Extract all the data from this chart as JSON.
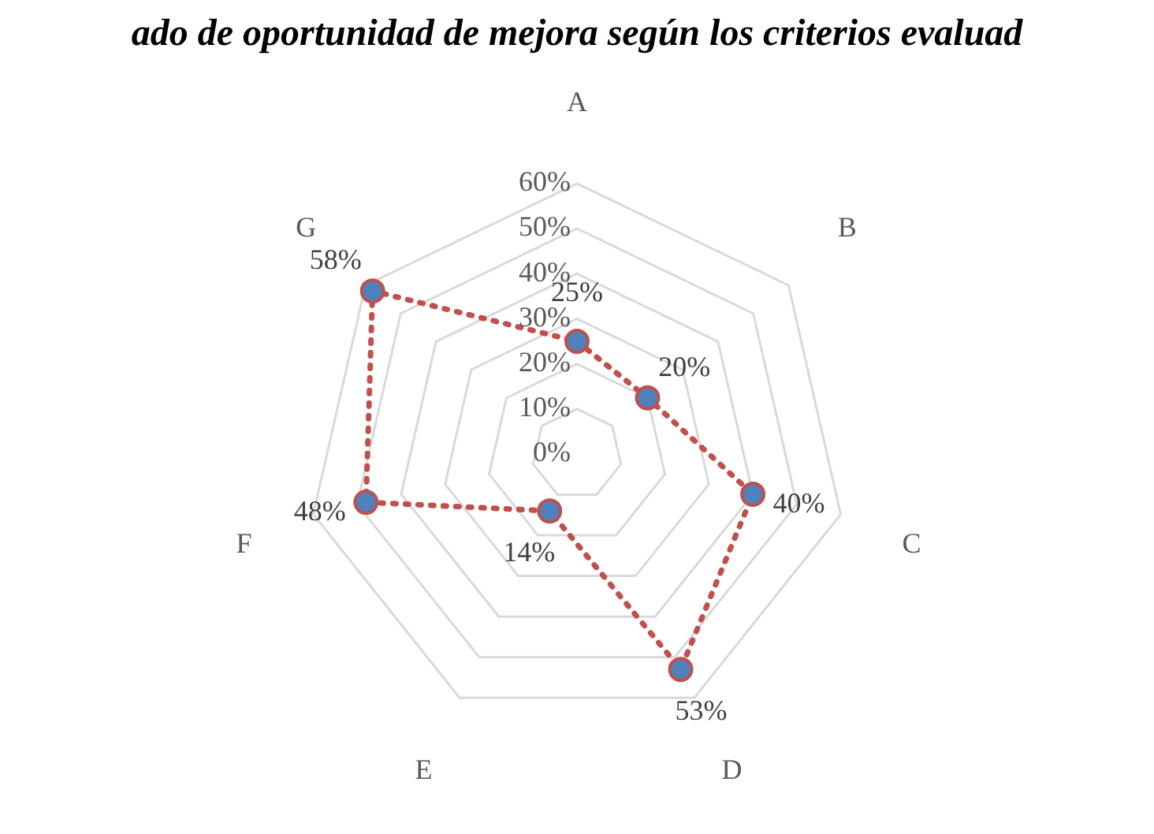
{
  "chart_data": {
    "type": "radar",
    "title": "ado de oportunidad de mejora según los criterios evaluad",
    "categories": [
      "A",
      "B",
      "C",
      "D",
      "E",
      "F",
      "G"
    ],
    "series": [
      {
        "color": "#c0504d",
        "values": [
          25,
          20,
          40,
          53,
          14,
          48,
          58
        ],
        "value_labels": [
          "25%",
          "20%",
          "40%",
          "53%",
          "14%",
          "48%",
          "58%"
        ]
      }
    ],
    "ylim": [
      0,
      60
    ],
    "yticks": [
      {
        "value": 0,
        "label": "0%"
      },
      {
        "value": 10,
        "label": "10%"
      },
      {
        "value": 20,
        "label": "20%"
      },
      {
        "value": 30,
        "label": "30%"
      },
      {
        "value": 40,
        "label": "40%"
      },
      {
        "value": 50,
        "label": "50%"
      },
      {
        "value": 60,
        "label": "60%"
      }
    ],
    "grid": true,
    "legend": false,
    "marker": "circle",
    "line_style": "dotted"
  }
}
